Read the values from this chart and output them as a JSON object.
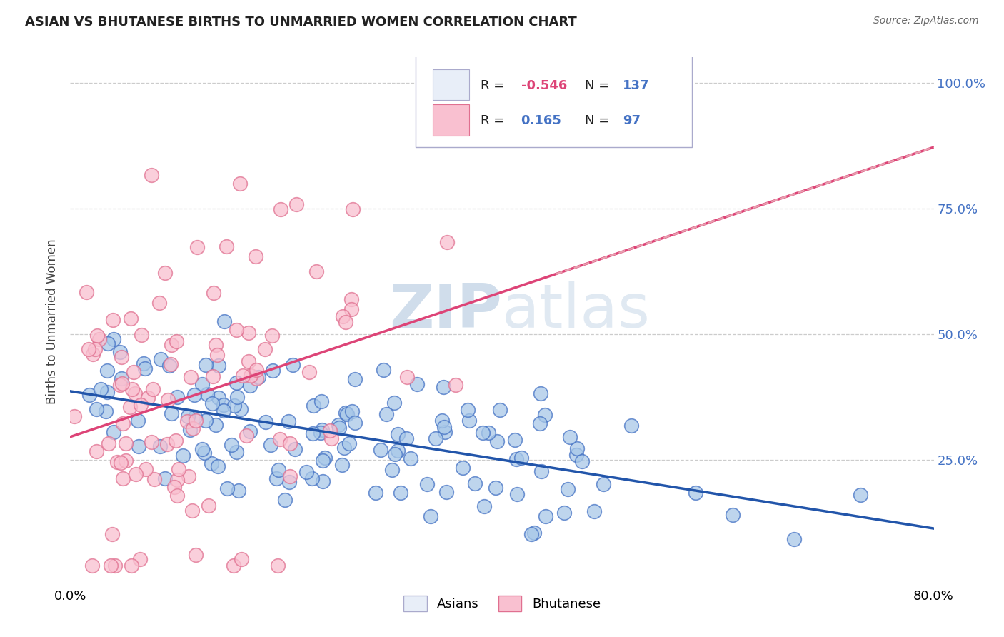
{
  "title": "ASIAN VS BHUTANESE BIRTHS TO UNMARRIED WOMEN CORRELATION CHART",
  "source": "Source: ZipAtlas.com",
  "ylabel": "Births to Unmarried Women",
  "xlim": [
    0.0,
    0.8
  ],
  "ylim": [
    0.0,
    1.05
  ],
  "ytick_positions": [
    0.25,
    0.5,
    0.75,
    1.0
  ],
  "ytick_labels": [
    "25.0%",
    "50.0%",
    "75.0%",
    "100.0%"
  ],
  "xtick_positions": [
    0.0,
    0.8
  ],
  "xtick_labels": [
    "0.0%",
    "80.0%"
  ],
  "legend_asian_R": "-0.546",
  "legend_asian_N": "137",
  "legend_bhutanese_R": "0.165",
  "legend_bhutanese_N": "97",
  "asian_scatter_color": "#a8c8e8",
  "asian_edge_color": "#4472c4",
  "bhutanese_scatter_color": "#f9c0d0",
  "bhutanese_edge_color": "#e07090",
  "asian_line_color": "#2255aa",
  "bhutanese_line_color": "#dd4477",
  "bhutanese_dash_color": "#e8a0b0",
  "watermark_color": "#c8d8e8",
  "grid_color": "#cccccc",
  "background_color": "#ffffff",
  "right_axis_color": "#4472c4",
  "legend_box_color": "#e8eef8",
  "legend_border_color": "#aaaacc",
  "title_color": "#222222",
  "source_color": "#666666",
  "ylabel_color": "#444444",
  "n_asian": 137,
  "n_bhutanese": 97,
  "r_asian": -0.546,
  "r_bhutanese": 0.165,
  "asian_seed": 7,
  "bhutanese_seed": 13
}
